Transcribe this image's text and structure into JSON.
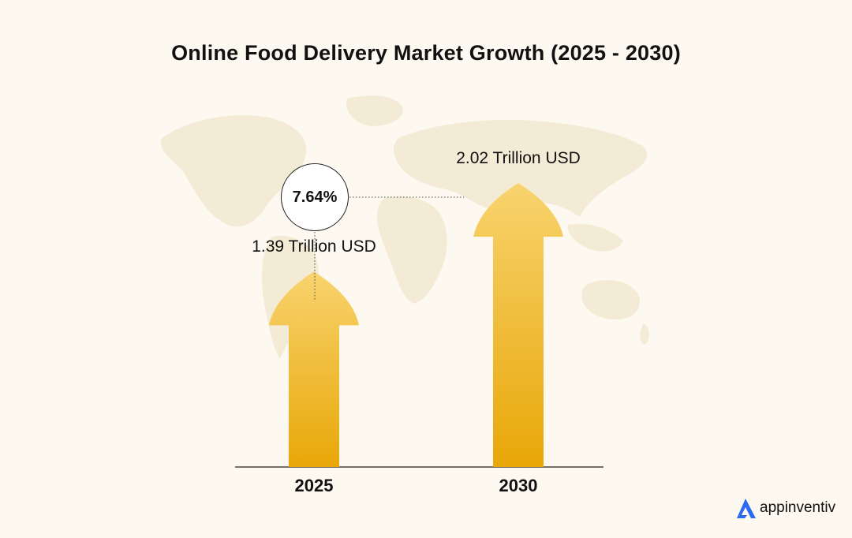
{
  "title": "Online Food Delivery Market Growth (2025 - 2030)",
  "chart_data": {
    "type": "bar",
    "categories": [
      "2025",
      "2030"
    ],
    "values": [
      1.39,
      2.02
    ],
    "value_labels": [
      "1.39 Trillion USD",
      "2.02 Trillion USD"
    ],
    "annotation": "7.64%",
    "ylim": [
      0,
      2.2
    ],
    "grid": false,
    "colors": {
      "bar_top": "#f8d36e",
      "bar_bottom": "#e8a708",
      "background": "#fdf9f0",
      "map": "#f3ebd6"
    }
  },
  "brand": {
    "name": "appinventiv",
    "accent": "#2b6bf3"
  }
}
